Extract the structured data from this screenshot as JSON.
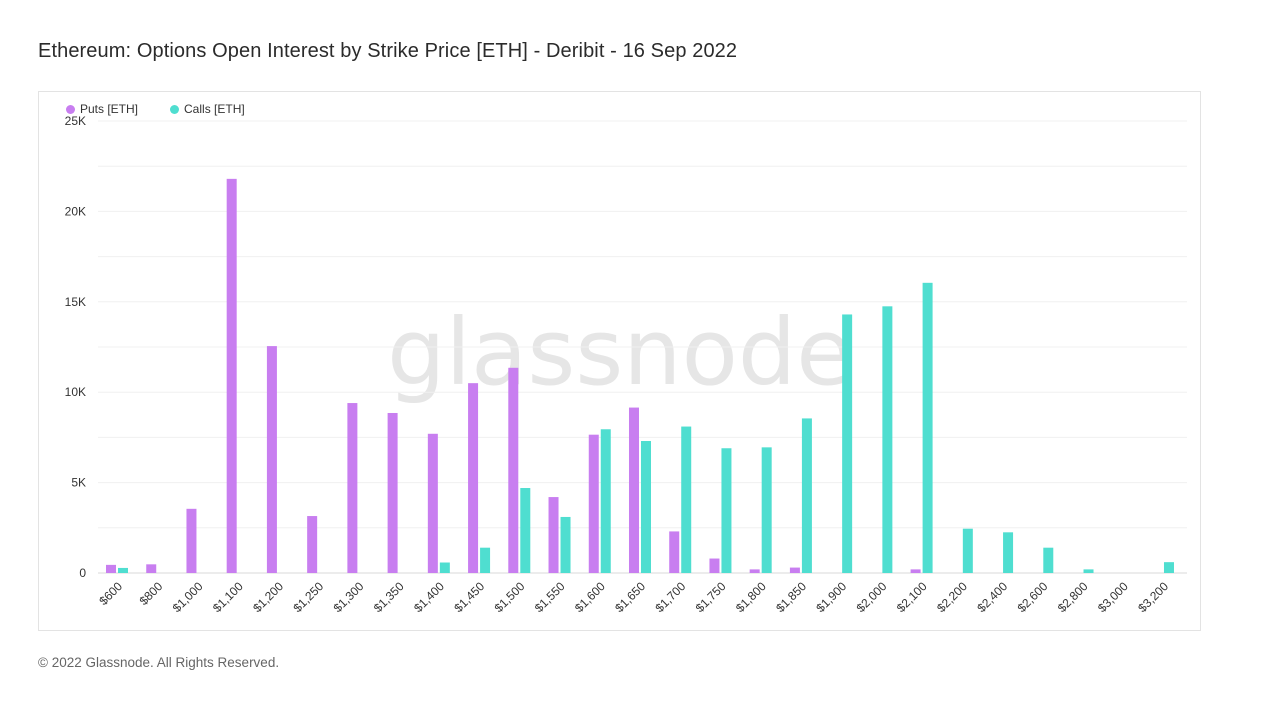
{
  "header": {
    "title": "Ethereum: Options Open Interest by Strike Price [ETH] - Deribit - 16 Sep 2022"
  },
  "watermark": "glassnode",
  "footer": {
    "copyright": "© 2022 Glassnode. All Rights Reserved."
  },
  "colors": {
    "puts": "#c87ef0",
    "calls": "#4fded0",
    "grid": "#f0f0f0",
    "axis_text": "#333333",
    "watermark": "#e6e6e6"
  },
  "chart_data": {
    "type": "bar",
    "title": "Ethereum: Options Open Interest by Strike Price [ETH] - Deribit - 16 Sep 2022",
    "xlabel": "",
    "ylabel": "",
    "ylim": [
      0,
      25000
    ],
    "yticks": [
      0,
      5000,
      10000,
      15000,
      20000,
      25000
    ],
    "ytick_labels": [
      "0",
      "5K",
      "10K",
      "15K",
      "20K",
      "25K"
    ],
    "grid": true,
    "legend_position": "top-left",
    "categories": [
      "$600",
      "$800",
      "$1,000",
      "$1,100",
      "$1,200",
      "$1,250",
      "$1,300",
      "$1,350",
      "$1,400",
      "$1,450",
      "$1,500",
      "$1,550",
      "$1,600",
      "$1,650",
      "$1,700",
      "$1,750",
      "$1,800",
      "$1,850",
      "$1,900",
      "$2,000",
      "$2,100",
      "$2,200",
      "$2,400",
      "$2,600",
      "$2,800",
      "$3,000",
      "$3,200"
    ],
    "series": [
      {
        "name": "Puts [ETH]",
        "color": "#c87ef0",
        "values": [
          450,
          480,
          3550,
          21800,
          12550,
          3150,
          9400,
          8850,
          7700,
          10500,
          11350,
          4200,
          7650,
          9150,
          2300,
          800,
          200,
          300,
          0,
          0,
          200,
          0,
          0,
          0,
          0,
          0,
          0
        ]
      },
      {
        "name": "Calls [ETH]",
        "color": "#4fded0",
        "values": [
          280,
          0,
          0,
          0,
          0,
          0,
          0,
          0,
          580,
          1400,
          4700,
          3100,
          7950,
          7300,
          8100,
          6900,
          6950,
          8550,
          14300,
          14750,
          16050,
          2450,
          2250,
          1400,
          200,
          0,
          600
        ]
      }
    ]
  }
}
